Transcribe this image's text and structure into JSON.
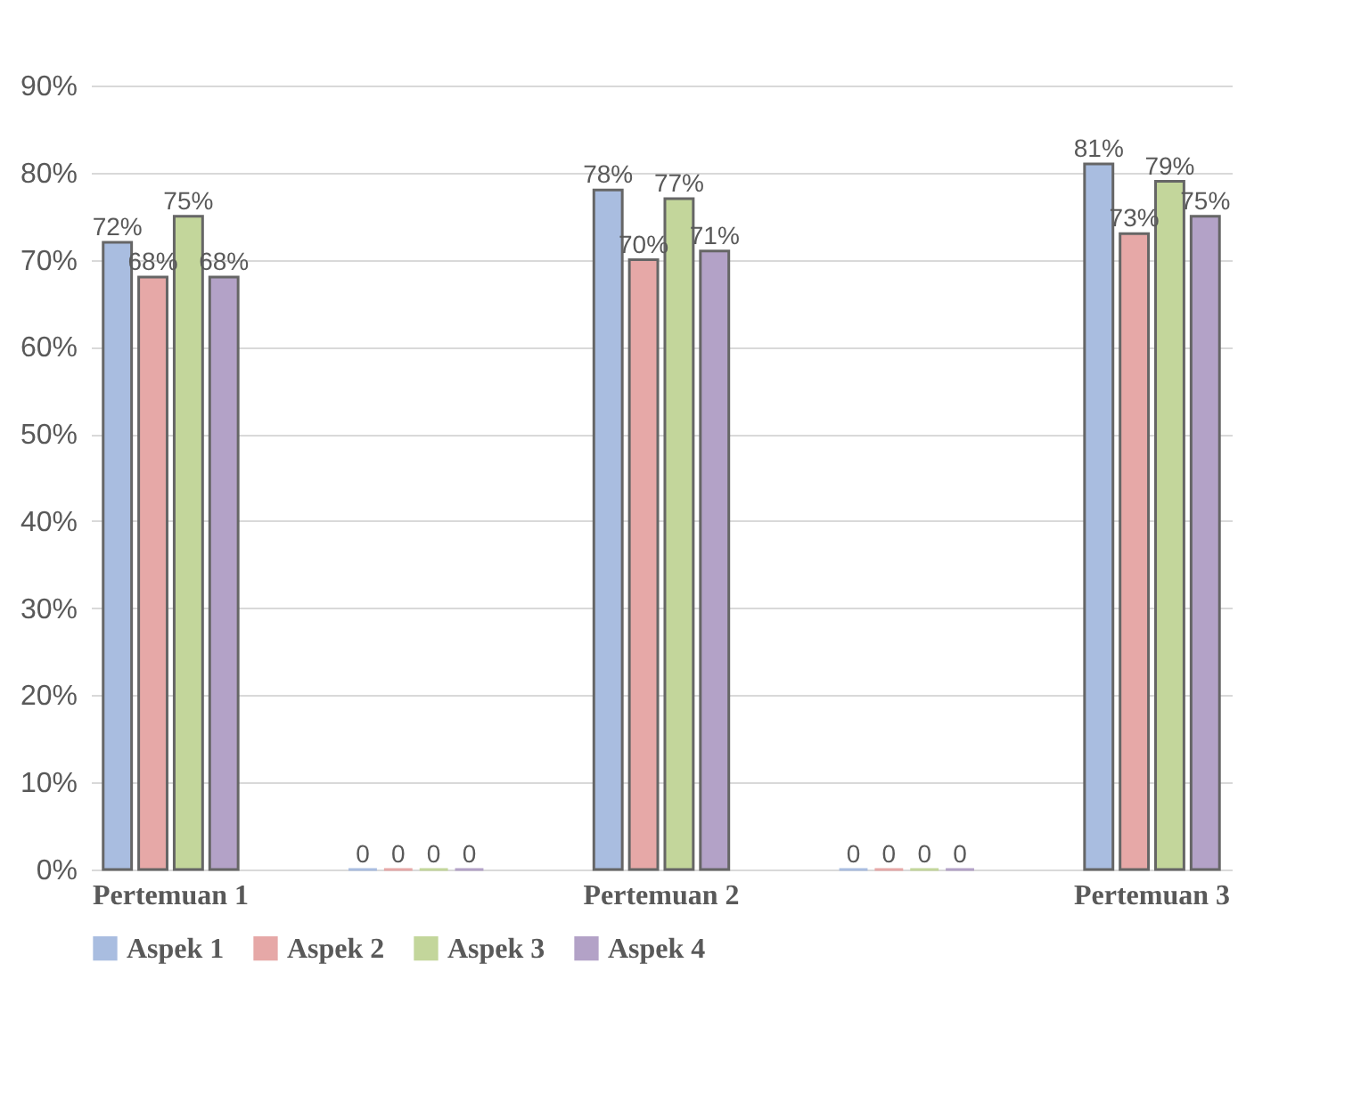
{
  "chart_data": {
    "type": "bar",
    "categories": [
      "Pertemuan 1",
      null,
      "Pertemuan 2",
      null,
      "Pertemuan 3"
    ],
    "series": [
      {
        "name": "Aspek 1",
        "color": "#a9bde0",
        "values": [
          72,
          0,
          78,
          0,
          81
        ],
        "value_labels": [
          "72%",
          "0",
          "78%",
          "0",
          "81%"
        ]
      },
      {
        "name": "Aspek 2",
        "color": "#e6a8a7",
        "values": [
          68,
          0,
          70,
          0,
          73
        ],
        "value_labels": [
          "68%",
          "0",
          "70%",
          "0",
          "73%"
        ]
      },
      {
        "name": "Aspek 3",
        "color": "#c3d69b",
        "values": [
          75,
          0,
          77,
          0,
          79
        ],
        "value_labels": [
          "75%",
          "0",
          "77%",
          "0",
          "79%"
        ]
      },
      {
        "name": "Aspek 4",
        "color": "#b3a2c7",
        "values": [
          68,
          0,
          71,
          0,
          75
        ],
        "value_labels": [
          "68%",
          "0",
          "71%",
          "0",
          "75%"
        ]
      }
    ],
    "ylim": [
      0,
      90
    ],
    "yticks": [
      {
        "value": 0,
        "label": "0%"
      },
      {
        "value": 10,
        "label": "10%"
      },
      {
        "value": 20,
        "label": "20%"
      },
      {
        "value": 30,
        "label": "30%"
      },
      {
        "value": 40,
        "label": "40%"
      },
      {
        "value": 50,
        "label": "50%"
      },
      {
        "value": 60,
        "label": "60%"
      },
      {
        "value": 70,
        "label": "70%"
      },
      {
        "value": 80,
        "label": "80%"
      },
      {
        "value": 90,
        "label": "90%"
      }
    ],
    "grid": "y",
    "legend": "bottom"
  }
}
